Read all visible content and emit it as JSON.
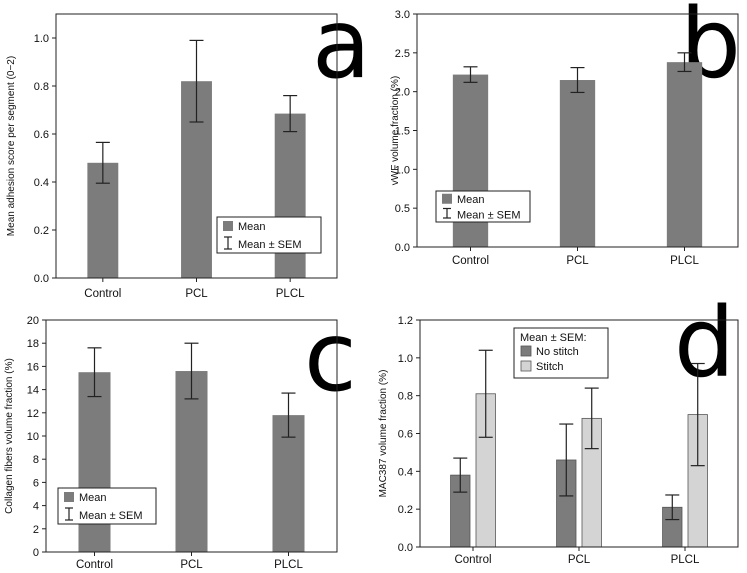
{
  "colors": {
    "bar_dark": "#7c7c7c",
    "bar_light": "#d4d4d4",
    "axis": "#222222",
    "error_bar": "#222222"
  },
  "chart_data": [
    {
      "panel": "a",
      "type": "bar",
      "ylabel": "Mean adhesion score per segment (0−2)",
      "categories": [
        "Control",
        "PCL",
        "PLCL"
      ],
      "series": [
        {
          "values": [
            0.48,
            0.82,
            0.685
          ],
          "sem": [
            0.085,
            0.17,
            0.075
          ]
        }
      ],
      "ylim": [
        0,
        1.1
      ],
      "yticks": [
        "0.0",
        "0.2",
        "0.4",
        "0.6",
        "0.8",
        "1.0"
      ],
      "legend": {
        "items": [
          "Mean",
          "Mean ± SEM"
        ],
        "position": "bottom-right"
      },
      "grid": false
    },
    {
      "panel": "b",
      "type": "bar",
      "ylabel": "vWF volume fraction (%)",
      "categories": [
        "Control",
        "PCL",
        "PLCL"
      ],
      "series": [
        {
          "values": [
            2.22,
            2.15,
            2.38
          ],
          "sem": [
            0.1,
            0.16,
            0.12
          ]
        }
      ],
      "ylim": [
        0,
        3.0
      ],
      "yticks": [
        "0.0",
        "0.5",
        "1.0",
        "1.5",
        "2.0",
        "2.5",
        "3.0"
      ],
      "legend": {
        "items": [
          "Mean",
          "Mean ± SEM"
        ],
        "position": "bottom-left"
      },
      "grid": false
    },
    {
      "panel": "c",
      "type": "bar",
      "ylabel": "Collagen fibers volume fraction (%)",
      "categories": [
        "Control",
        "PCL",
        "PLCL"
      ],
      "series": [
        {
          "values": [
            15.5,
            15.6,
            11.8
          ],
          "sem": [
            2.1,
            2.4,
            1.9
          ]
        }
      ],
      "ylim": [
        0,
        20
      ],
      "yticks": [
        "0",
        "2",
        "4",
        "6",
        "8",
        "10",
        "12",
        "14",
        "16",
        "18",
        "20"
      ],
      "legend": {
        "items": [
          "Mean",
          "Mean ± SEM"
        ],
        "position": "bottom-left"
      },
      "grid": false
    },
    {
      "panel": "d",
      "type": "bar",
      "ylabel": "MAC387 volume fraction (%)",
      "categories": [
        "Control",
        "PCL",
        "PLCL"
      ],
      "series": [
        {
          "name": "No stitch",
          "values": [
            0.38,
            0.46,
            0.21
          ],
          "sem": [
            0.09,
            0.19,
            0.065
          ]
        },
        {
          "name": "Stitch",
          "values": [
            0.81,
            0.68,
            0.7
          ],
          "sem": [
            0.23,
            0.16,
            0.27
          ]
        }
      ],
      "ylim": [
        0,
        1.2
      ],
      "yticks": [
        "0.0",
        "0.2",
        "0.4",
        "0.6",
        "0.8",
        "1.0",
        "1.2"
      ],
      "legend": {
        "title": "Mean ± SEM:",
        "items": [
          "No stitch",
          "Stitch"
        ],
        "position": "top-center"
      },
      "grid": false
    }
  ]
}
